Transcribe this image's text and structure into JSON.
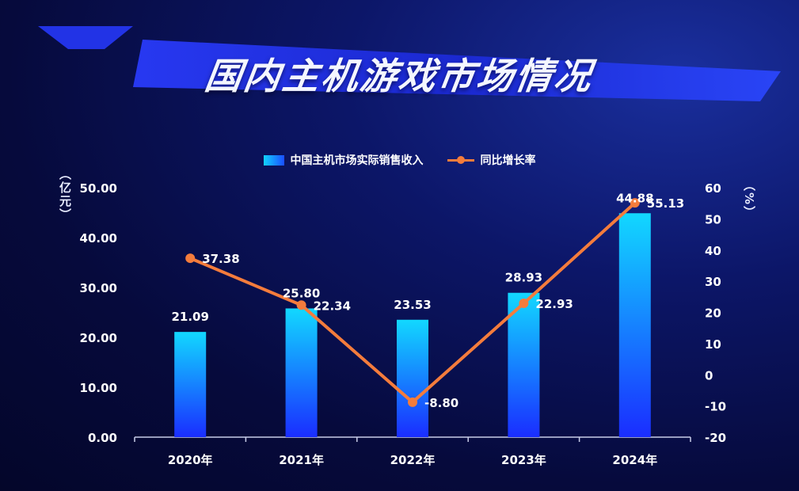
{
  "title": "国内主机游戏市场情况",
  "left_unit": "（亿元）",
  "right_unit": "（%）",
  "colors": {
    "bar_top": "#12d8ff",
    "bar_bottom": "#1a2dff",
    "line": "#f47c3c",
    "axis": "#c8cde8",
    "text": "#ffffff"
  },
  "chart_data": {
    "type": "bar",
    "categories": [
      "2020年",
      "2021年",
      "2022年",
      "2023年",
      "2024年"
    ],
    "series": [
      {
        "name": "中国主机市场实际销售收入",
        "type": "bar",
        "axis": "left",
        "values": [
          21.09,
          25.8,
          23.53,
          28.93,
          44.88
        ],
        "labels": [
          "21.09",
          "25.80",
          "23.53",
          "28.93",
          "44.88"
        ]
      },
      {
        "name": "同比增长率",
        "type": "line",
        "axis": "right",
        "values": [
          37.38,
          22.34,
          -8.8,
          22.93,
          55.13
        ],
        "labels": [
          "37.38",
          "22.34",
          "-8.80",
          "22.93",
          "55.13"
        ]
      }
    ],
    "left_axis": {
      "ylim": [
        0,
        50
      ],
      "ticks": [
        0,
        10,
        20,
        30,
        40,
        50
      ],
      "tick_labels": [
        "0.00",
        "10.00",
        "20.00",
        "30.00",
        "40.00",
        "50.00"
      ]
    },
    "right_axis": {
      "ylim": [
        -20,
        60
      ],
      "ticks": [
        -20,
        -10,
        0,
        10,
        20,
        30,
        40,
        50,
        60
      ],
      "tick_labels": [
        "-20",
        "-10",
        "0",
        "10",
        "20",
        "30",
        "40",
        "50",
        "60"
      ]
    },
    "legend_position": "top-center",
    "grid": false
  }
}
